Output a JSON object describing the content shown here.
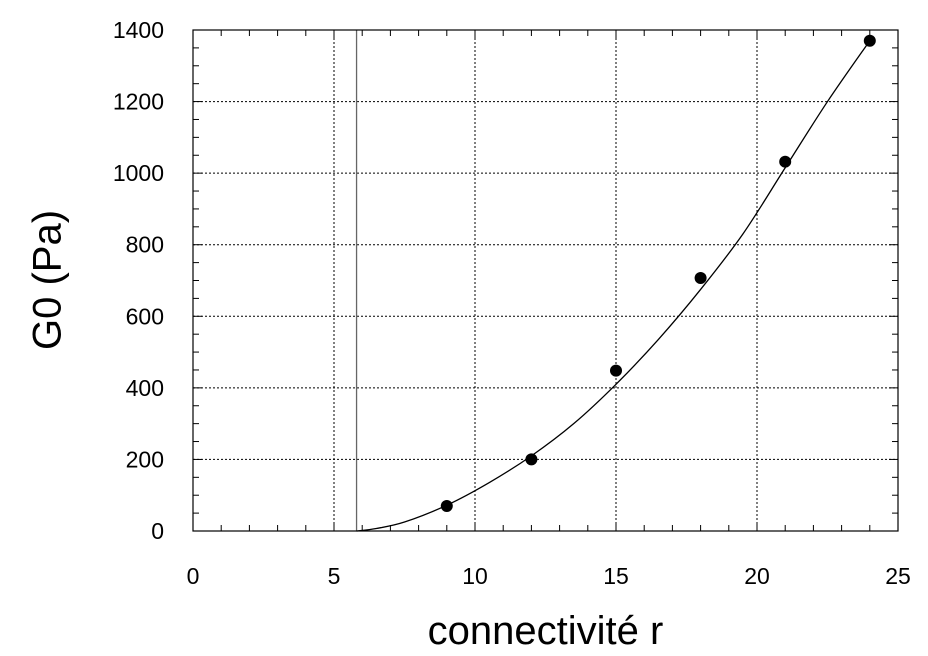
{
  "chart_data": {
    "type": "scatter",
    "title": "",
    "xlabel": "connectivité r",
    "ylabel": "G0 (Pa)",
    "xlim": [
      0,
      25
    ],
    "ylim": [
      0,
      1400
    ],
    "x_ticks": [
      0,
      5,
      10,
      15,
      20,
      25
    ],
    "x_tick_labels": [
      "0",
      "5",
      "10",
      "15",
      "20",
      "25"
    ],
    "y_ticks": [
      0,
      200,
      400,
      600,
      800,
      1000,
      1200,
      1400
    ],
    "y_tick_labels": [
      "0",
      "200",
      "400",
      "600",
      "800",
      "1000",
      "1200",
      "1400"
    ],
    "grid": true,
    "legend": "none",
    "series": [
      {
        "x": [
          9,
          12,
          15,
          18,
          21,
          24
        ],
        "y": [
          70,
          200,
          448,
          707,
          1032,
          1370
        ],
        "marker": "filled-circle",
        "color": "#000000"
      }
    ],
    "fit_curve": {
      "x": [
        5.8,
        6.5,
        7.5,
        9,
        10.5,
        12,
        13.5,
        15,
        16.5,
        18,
        19.5,
        21,
        22.5,
        24
      ],
      "y": [
        0,
        7,
        25,
        72,
        135,
        210,
        300,
        410,
        535,
        675,
        830,
        1015,
        1200,
        1370
      ],
      "color": "#000000"
    },
    "reference_line": {
      "x": 5.8,
      "color": "#666666"
    }
  }
}
